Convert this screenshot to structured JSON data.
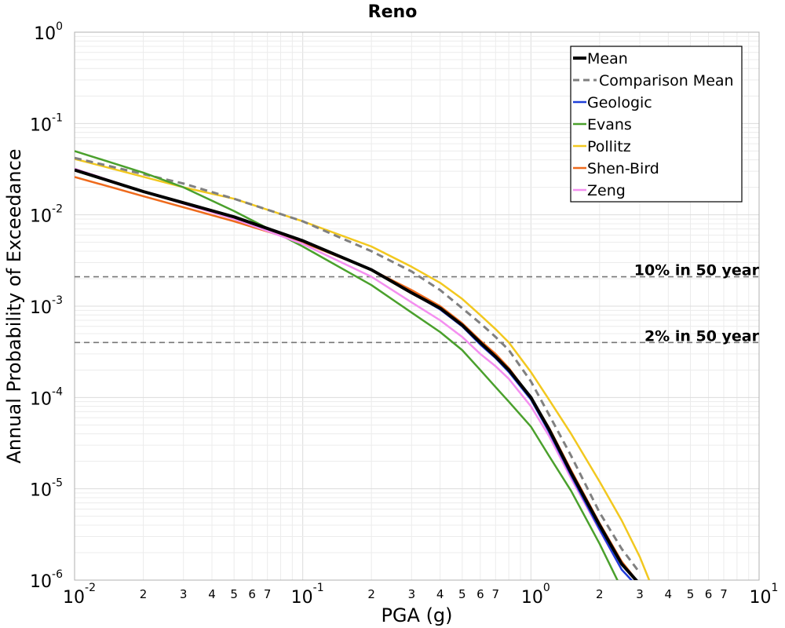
{
  "chart_data": {
    "type": "line",
    "title": "Reno",
    "xlabel": "PGA (g)",
    "ylabel": "Annual Probability of Exceedance",
    "xscale": "log",
    "yscale": "log",
    "xlim": [
      0.01,
      10
    ],
    "ylim": [
      1e-06,
      1
    ],
    "grid": true,
    "legend_position": "top-right",
    "x_major_ticks": [
      {
        "base": "10",
        "exp": "-2"
      },
      {
        "base": "10",
        "exp": "-1"
      },
      {
        "base": "10",
        "exp": "0"
      },
      {
        "base": "10",
        "exp": "1"
      }
    ],
    "y_major_ticks": [
      {
        "base": "10",
        "exp": "0"
      },
      {
        "base": "10",
        "exp": "-1"
      },
      {
        "base": "10",
        "exp": "-2"
      },
      {
        "base": "10",
        "exp": "-3"
      },
      {
        "base": "10",
        "exp": "-4"
      },
      {
        "base": "10",
        "exp": "-5"
      },
      {
        "base": "10",
        "exp": "-6"
      }
    ],
    "x_minor_labels": [
      "2",
      "3",
      "4",
      "5",
      "6",
      "7"
    ],
    "reference_lines": [
      {
        "label": "10% in 50 year",
        "y": 0.0021,
        "color": "#777777"
      },
      {
        "label": "2% in 50 year",
        "y": 0.0004,
        "color": "#777777"
      }
    ],
    "series": [
      {
        "name": "Mean",
        "color": "#000000",
        "dash": false,
        "width": 4,
        "x": [
          0.01,
          0.02,
          0.05,
          0.1,
          0.2,
          0.3,
          0.4,
          0.5,
          0.6,
          0.7,
          0.8,
          1.0,
          1.2,
          1.5,
          2.0,
          2.5,
          3.0
        ],
        "y": [
          0.031,
          0.018,
          0.0095,
          0.0052,
          0.0025,
          0.0014,
          0.00095,
          0.00062,
          0.0004,
          0.00028,
          0.0002,
          0.0001,
          4.5e-05,
          1.5e-05,
          4e-06,
          1.5e-06,
          9e-07
        ]
      },
      {
        "name": "Comparison Mean",
        "color": "#808080",
        "dash": true,
        "width": 3,
        "x": [
          0.01,
          0.03,
          0.05,
          0.1,
          0.2,
          0.3,
          0.4,
          0.5,
          0.6,
          0.7,
          0.8,
          1.0,
          1.2,
          1.5,
          2.0,
          2.5,
          3.0
        ],
        "y": [
          0.042,
          0.022,
          0.015,
          0.0085,
          0.004,
          0.0024,
          0.0015,
          0.00095,
          0.00065,
          0.00046,
          0.00033,
          0.00015,
          6.5e-05,
          2.3e-05,
          5.5e-06,
          2.2e-06,
          1.2e-06
        ]
      },
      {
        "name": "Geologic",
        "color": "#1f3fd8",
        "dash": false,
        "width": 2.5,
        "x": [
          0.01,
          0.02,
          0.05,
          0.1,
          0.2,
          0.3,
          0.4,
          0.5,
          0.6,
          0.7,
          0.8,
          1.0,
          1.2,
          1.5,
          2.0,
          2.5,
          3.0
        ],
        "y": [
          0.031,
          0.018,
          0.0095,
          0.0052,
          0.0025,
          0.0014,
          0.00092,
          0.0006,
          0.00038,
          0.00027,
          0.00019,
          9.5e-05,
          4.2e-05,
          1.4e-05,
          3.6e-06,
          1.3e-06,
          8e-07
        ]
      },
      {
        "name": "Evans",
        "color": "#4aa02c",
        "dash": false,
        "width": 2.5,
        "x": [
          0.01,
          0.02,
          0.03,
          0.05,
          0.1,
          0.2,
          0.3,
          0.4,
          0.5,
          0.6,
          0.7,
          0.8,
          1.0,
          1.2,
          1.5,
          2.0,
          2.5
        ],
        "y": [
          0.05,
          0.029,
          0.02,
          0.011,
          0.0045,
          0.0017,
          0.00085,
          0.00052,
          0.00033,
          0.0002,
          0.00013,
          9e-05,
          4.8e-05,
          2.3e-05,
          9.5e-06,
          2.5e-06,
          8e-07
        ]
      },
      {
        "name": "Pollitz",
        "color": "#f2c81f",
        "dash": false,
        "width": 2.5,
        "x": [
          0.01,
          0.03,
          0.05,
          0.1,
          0.2,
          0.3,
          0.4,
          0.5,
          0.6,
          0.7,
          0.8,
          1.0,
          1.2,
          1.5,
          2.0,
          2.5,
          3.0,
          3.3
        ],
        "y": [
          0.041,
          0.02,
          0.015,
          0.0085,
          0.0045,
          0.0027,
          0.0018,
          0.0012,
          0.0008,
          0.00056,
          0.0004,
          0.00019,
          9.5e-05,
          4e-05,
          1.2e-05,
          4.5e-06,
          1.8e-06,
          1e-06
        ]
      },
      {
        "name": "Shen-Bird",
        "color": "#ee6a1c",
        "dash": false,
        "width": 2.5,
        "x": [
          0.01,
          0.02,
          0.05,
          0.1,
          0.2,
          0.3,
          0.4,
          0.5,
          0.6,
          0.7,
          0.8,
          1.0,
          1.2,
          1.5,
          2.0,
          2.5,
          3.0
        ],
        "y": [
          0.026,
          0.016,
          0.0085,
          0.005,
          0.0025,
          0.0015,
          0.001,
          0.00065,
          0.00042,
          0.0003,
          0.00021,
          0.0001,
          4.7e-05,
          1.6e-05,
          4.2e-06,
          1.6e-06,
          9e-07
        ]
      },
      {
        "name": "Zeng",
        "color": "#f48ff0",
        "dash": false,
        "width": 2.5,
        "x": [
          0.01,
          0.02,
          0.05,
          0.1,
          0.2,
          0.3,
          0.4,
          0.5,
          0.6,
          0.7,
          0.8,
          1.0,
          1.2,
          1.5,
          2.0,
          2.5,
          3.0
        ],
        "y": [
          0.032,
          0.018,
          0.009,
          0.0048,
          0.0021,
          0.0011,
          0.0007,
          0.00046,
          0.0003,
          0.00022,
          0.00016,
          8e-05,
          3.8e-05,
          1.3e-05,
          3.5e-06,
          1.3e-06,
          8e-07
        ]
      }
    ]
  }
}
